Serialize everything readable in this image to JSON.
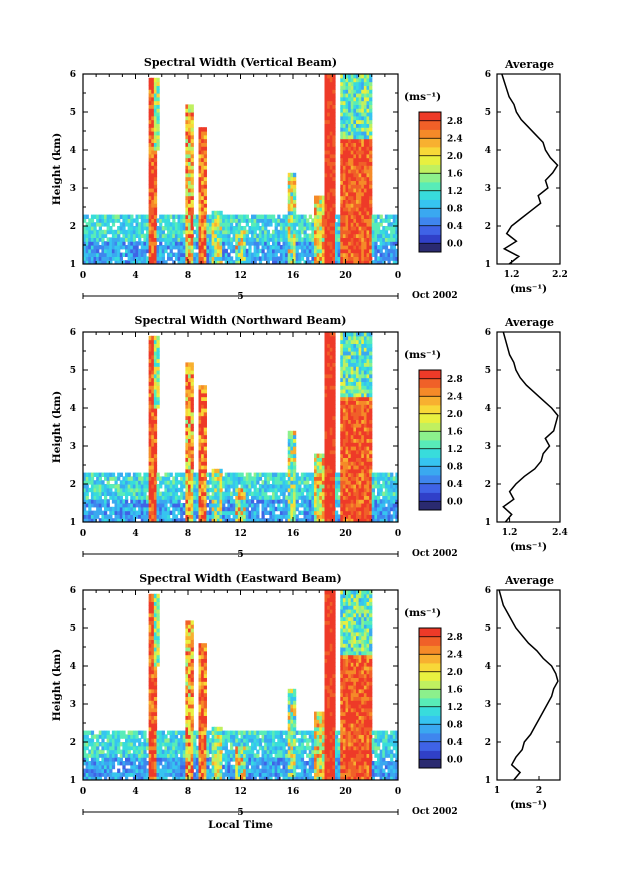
{
  "chart_data": {
    "type": "heatmap",
    "common": {
      "time_ticks": [
        "0",
        "4",
        "8",
        "12",
        "16",
        "20",
        "0"
      ],
      "height_ticks": [
        "1",
        "2",
        "3",
        "4",
        "5",
        "6"
      ],
      "date_day": "5",
      "date_month_year": "Oct 2002",
      "colorbar_unit": "(ms⁻¹)",
      "avg_title": "Average",
      "avg_unit": "(ms⁻¹)",
      "xlabel": "Local Time",
      "ylabel": "Height (km)",
      "colors": [
        "#2a2a70",
        "#3040c8",
        "#3f63e6",
        "#3f86ee",
        "#3aa8f0",
        "#36c4f0",
        "#38dcdc",
        "#58ecb8",
        "#8cf08c",
        "#c0f060",
        "#e8f040",
        "#f8d838",
        "#f8b030",
        "#f58a28",
        "#f06028",
        "#ee3a28"
      ]
    },
    "panels": [
      {
        "title": "Spectral Width (Vertical Beam)",
        "colorbar_ticks": [
          "0.0",
          "0.4",
          "0.8",
          "1.2",
          "1.6",
          "2.0",
          "2.4",
          "2.8"
        ],
        "colorbar_range": [
          -0.2,
          3.0
        ],
        "avg_ticks": [
          "1.2",
          "2.2"
        ],
        "avg_xlim": [
          0.9,
          2.2
        ],
        "average_profile": {
          "height_km": [
            1.0,
            1.2,
            1.4,
            1.6,
            1.8,
            2.0,
            2.2,
            2.4,
            2.6,
            2.8,
            3.0,
            3.2,
            3.4,
            3.6,
            3.8,
            4.0,
            4.2,
            4.4,
            4.6,
            4.8,
            5.0,
            5.2,
            5.4,
            5.6,
            5.8,
            6.0
          ],
          "width_ms": [
            1.15,
            1.35,
            1.05,
            1.3,
            1.1,
            1.2,
            1.4,
            1.6,
            1.8,
            1.75,
            1.95,
            1.9,
            2.05,
            2.15,
            2.0,
            1.9,
            1.85,
            1.7,
            1.55,
            1.4,
            1.3,
            1.25,
            1.15,
            1.1,
            1.05,
            1.0
          ]
        }
      },
      {
        "title": "Spectral Width (Northward Beam)",
        "colorbar_ticks": [
          "0.0",
          "0.4",
          "0.8",
          "1.2",
          "1.6",
          "2.0",
          "2.4",
          "2.8"
        ],
        "colorbar_range": [
          -0.2,
          3.0
        ],
        "avg_ticks": [
          "1.2",
          "2.4"
        ],
        "avg_xlim": [
          0.9,
          2.4
        ],
        "average_profile": {
          "height_km": [
            1.0,
            1.2,
            1.4,
            1.6,
            1.8,
            2.0,
            2.2,
            2.4,
            2.6,
            2.8,
            3.0,
            3.2,
            3.4,
            3.6,
            3.8,
            4.0,
            4.2,
            4.4,
            4.6,
            4.8,
            5.0,
            5.2,
            5.4,
            5.6,
            5.8,
            6.0
          ],
          "width_ms": [
            1.1,
            1.25,
            1.05,
            1.3,
            1.2,
            1.35,
            1.55,
            1.8,
            1.95,
            2.0,
            2.15,
            2.05,
            2.25,
            2.3,
            2.35,
            2.2,
            2.0,
            1.8,
            1.6,
            1.45,
            1.35,
            1.3,
            1.2,
            1.15,
            1.1,
            1.05
          ]
        }
      },
      {
        "title": "Spectral Width (Eastward Beam)",
        "colorbar_ticks": [
          "0.0",
          "0.4",
          "0.8",
          "1.2",
          "1.6",
          "2.0",
          "2.4",
          "2.8"
        ],
        "colorbar_range": [
          -0.2,
          3.0
        ],
        "avg_ticks": [
          "1",
          "2"
        ],
        "avg_xlim": [
          1.0,
          2.5
        ],
        "average_profile": {
          "height_km": [
            1.0,
            1.2,
            1.4,
            1.6,
            1.8,
            2.0,
            2.2,
            2.4,
            2.6,
            2.8,
            3.0,
            3.2,
            3.4,
            3.6,
            3.8,
            4.0,
            4.2,
            4.4,
            4.6,
            4.8,
            5.0,
            5.2,
            5.4,
            5.6,
            5.8,
            6.0
          ],
          "width_ms": [
            1.4,
            1.55,
            1.35,
            1.45,
            1.6,
            1.65,
            1.8,
            1.9,
            2.0,
            2.1,
            2.2,
            2.3,
            2.35,
            2.45,
            2.4,
            2.3,
            2.1,
            1.95,
            1.75,
            1.6,
            1.45,
            1.35,
            1.25,
            1.15,
            1.1,
            1.05
          ]
        }
      }
    ]
  }
}
